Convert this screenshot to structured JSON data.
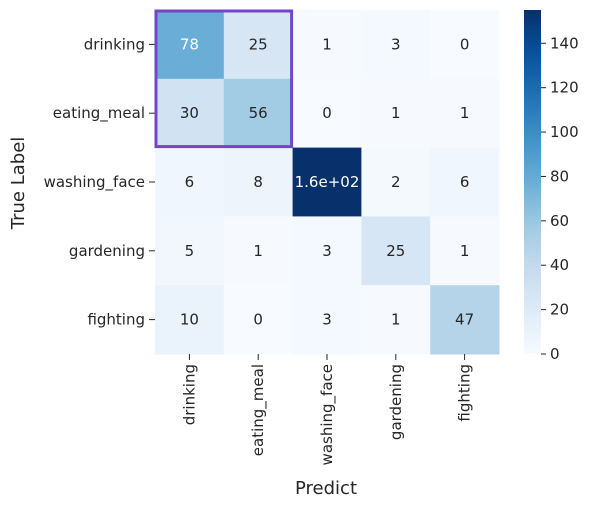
{
  "chart_data": {
    "type": "heatmap",
    "title": "",
    "xlabel": "Predict",
    "ylabel": "True Label",
    "x_categories": [
      "drinking",
      "eating_meal",
      "washing_face",
      "gardening",
      "fighting"
    ],
    "y_categories": [
      "drinking",
      "eating_meal",
      "washing_face",
      "gardening",
      "fighting"
    ],
    "values": [
      [
        78,
        25,
        1,
        3,
        0
      ],
      [
        30,
        56,
        0,
        1,
        1
      ],
      [
        6,
        8,
        160,
        2,
        6
      ],
      [
        5,
        1,
        3,
        25,
        1
      ],
      [
        10,
        0,
        3,
        1,
        47
      ]
    ],
    "cell_labels": [
      [
        "78",
        "25",
        "1",
        "3",
        "0"
      ],
      [
        "30",
        "56",
        "0",
        "1",
        "1"
      ],
      [
        "6",
        "8",
        "1.6e+02",
        "2",
        "6"
      ],
      [
        "5",
        "1",
        "3",
        "25",
        "1"
      ],
      [
        "10",
        "0",
        "3",
        "1",
        "47"
      ]
    ],
    "colormap": "Blues",
    "vmin": 0,
    "vmax": 155,
    "colorbar_ticks": [
      0,
      20,
      40,
      60,
      80,
      100,
      120,
      140
    ],
    "grid": false,
    "highlight": {
      "rows": [
        0,
        1
      ],
      "cols": [
        0,
        1
      ],
      "color": "#7445c9"
    }
  }
}
